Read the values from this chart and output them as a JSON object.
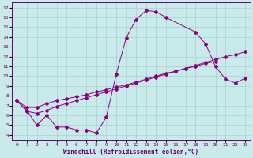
{
  "xlabel": "Windchill (Refroidissement éolien,°C)",
  "xlim": [
    -0.5,
    23.5
  ],
  "ylim": [
    3.5,
    17.5
  ],
  "xticks": [
    0,
    1,
    2,
    3,
    4,
    5,
    6,
    7,
    8,
    9,
    10,
    11,
    12,
    13,
    14,
    15,
    16,
    17,
    18,
    19,
    20,
    21,
    22,
    23
  ],
  "yticks": [
    4,
    5,
    6,
    7,
    8,
    9,
    10,
    11,
    12,
    13,
    14,
    15,
    16,
    17
  ],
  "bg_color": "#c8eaea",
  "line_color": "#8b0080",
  "grid_color": "#a8d0d0",
  "line1_x": [
    0,
    1,
    2,
    3,
    4,
    5,
    6,
    7,
    8,
    9,
    10,
    11,
    12,
    13,
    14,
    15,
    18,
    19,
    20,
    21,
    22,
    23
  ],
  "line1_y": [
    7.5,
    6.5,
    5.0,
    6.0,
    4.8,
    4.8,
    4.5,
    4.5,
    4.2,
    5.8,
    10.2,
    13.9,
    15.8,
    16.7,
    16.6,
    16.0,
    14.5,
    13.3,
    11.0,
    9.7,
    9.3,
    9.8
  ],
  "line2_x": [
    0,
    1,
    2,
    3,
    4,
    5,
    6,
    7,
    8,
    9,
    10,
    11,
    12,
    13,
    14,
    15,
    16,
    17,
    18,
    19,
    20
  ],
  "line2_y": [
    7.5,
    6.8,
    6.8,
    7.2,
    7.5,
    7.7,
    7.9,
    8.1,
    8.4,
    8.6,
    8.9,
    9.1,
    9.4,
    9.7,
    10.0,
    10.3,
    10.5,
    10.8,
    11.0,
    11.3,
    11.5
  ],
  "line3_x": [
    0,
    1,
    2,
    3,
    4,
    5,
    6,
    7,
    8,
    9,
    10,
    11,
    12,
    13,
    14,
    15,
    16,
    17,
    18,
    19,
    20,
    21,
    22,
    23
  ],
  "line3_y": [
    7.5,
    6.4,
    6.2,
    6.5,
    6.9,
    7.2,
    7.5,
    7.8,
    8.1,
    8.4,
    8.7,
    9.0,
    9.3,
    9.6,
    9.9,
    10.2,
    10.5,
    10.8,
    11.1,
    11.4,
    11.7,
    12.0,
    12.2,
    12.5
  ]
}
